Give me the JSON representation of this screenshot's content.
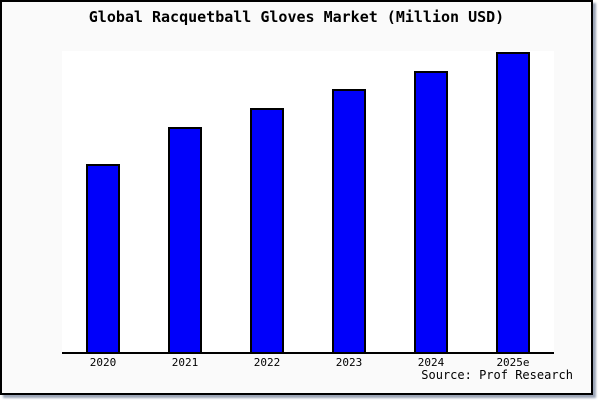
{
  "colors": {
    "bar_fill": "#0000fa",
    "bar_edge": "#000000",
    "figure_bg": "#fafafa",
    "plot_bg": "#ffffff",
    "axis": "#000000",
    "frame_border": "#000000"
  },
  "chart_data": {
    "type": "bar",
    "title": "Global Racquetball Gloves Market (Million USD)",
    "categories": [
      "2020",
      "2021",
      "2022",
      "2023",
      "2024",
      "2025e"
    ],
    "values": [
      62.5,
      74.8,
      81.1,
      87.4,
      93.5,
      99.7
    ],
    "units": "relative height units; chart displays no y-axis scale",
    "xlabel": "",
    "ylabel": "",
    "ylim": [
      0,
      100
    ],
    "grid": false,
    "legend": null,
    "source": "Source: Prof Research"
  }
}
